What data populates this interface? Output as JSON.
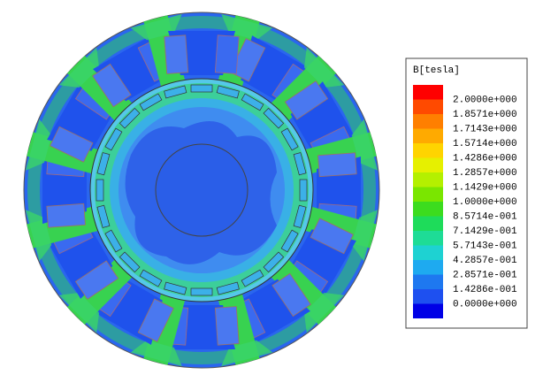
{
  "legend": {
    "title": "B[tesla]",
    "levels": [
      "2.0000e+000",
      "1.8571e+000",
      "1.7143e+000",
      "1.5714e+000",
      "1.4286e+000",
      "1.2857e+000",
      "1.1429e+000",
      "1.0000e+000",
      "8.5714e-001",
      "7.1429e-001",
      "5.7143e-001",
      "4.2857e-001",
      "2.8571e-001",
      "1.4286e-001",
      "0.0000e+000"
    ],
    "colors": [
      "#ff0000",
      "#ff4a00",
      "#ff7f00",
      "#ffaa00",
      "#ffd400",
      "#e6f000",
      "#b4f000",
      "#7ae600",
      "#3cdc1e",
      "#1edc5a",
      "#1edc96",
      "#1ed2d2",
      "#1eaaf0",
      "#1e78f0",
      "#1e50f0",
      "#0000e6"
    ]
  }
}
